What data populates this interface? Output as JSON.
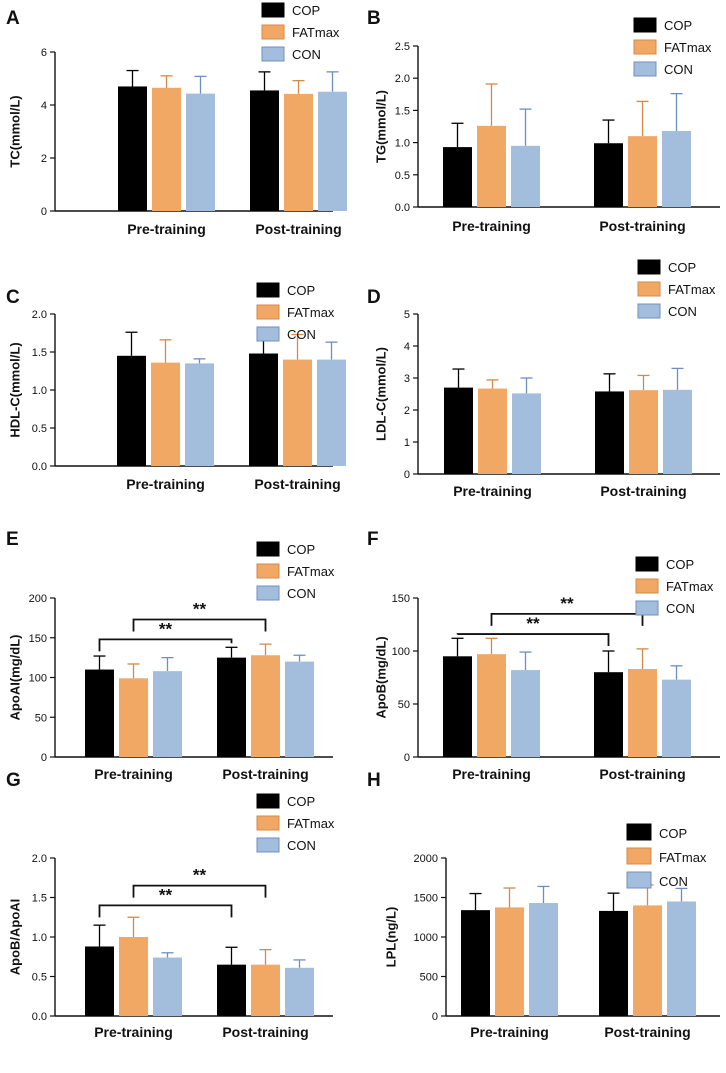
{
  "colors": {
    "COP": "#000000",
    "FATmax": "#F0A864",
    "CON": "#A2BEDC",
    "err_COP": "#000000",
    "err_FATmax": "#D4894A",
    "err_CON": "#6D8FBF",
    "axis": "#111111"
  },
  "chart_data": [
    {
      "type": "bar",
      "panel": "A",
      "ylabel": "TC(mmol/L)",
      "categories": [
        "Pre-training",
        "Post-training"
      ],
      "ylim": [
        0,
        6
      ],
      "yticks": [
        "0",
        "2",
        "4",
        "6"
      ],
      "legend": [
        "COP",
        "FATmax",
        "CON"
      ],
      "series": [
        {
          "name": "COP",
          "values": [
            4.7,
            4.55
          ],
          "errors": [
            0.6,
            0.7
          ]
        },
        {
          "name": "FATmax",
          "values": [
            4.65,
            4.42
          ],
          "errors": [
            0.45,
            0.5
          ]
        },
        {
          "name": "CON",
          "values": [
            4.43,
            4.5
          ],
          "errors": [
            0.65,
            0.75
          ]
        }
      ],
      "significance": []
    },
    {
      "type": "bar",
      "panel": "B",
      "ylabel": "TG(mmol/L)",
      "categories": [
        "Pre-training",
        "Post-training"
      ],
      "ylim": [
        0,
        2.5
      ],
      "yticks": [
        "0.0",
        "0.5",
        "1.0",
        "1.5",
        "2.0",
        "2.5"
      ],
      "legend": [
        "COP",
        "FATmax",
        "CON"
      ],
      "series": [
        {
          "name": "COP",
          "values": [
            0.93,
            0.99
          ],
          "errors": [
            0.37,
            0.36
          ]
        },
        {
          "name": "FATmax",
          "values": [
            1.26,
            1.1
          ],
          "errors": [
            0.65,
            0.54
          ]
        },
        {
          "name": "CON",
          "values": [
            0.95,
            1.18
          ],
          "errors": [
            0.57,
            0.58
          ]
        }
      ],
      "significance": []
    },
    {
      "type": "bar",
      "panel": "C",
      "ylabel": "HDL-C(mmol/L)",
      "categories": [
        "Pre-training",
        "Post-training"
      ],
      "ylim": [
        0,
        2.0
      ],
      "yticks": [
        "0.0",
        "0.5",
        "1.0",
        "1.5",
        "2.0"
      ],
      "legend": [
        "COP",
        "FATmax",
        "CON"
      ],
      "series": [
        {
          "name": "COP",
          "values": [
            1.45,
            1.48
          ],
          "errors": [
            0.31,
            0.26
          ]
        },
        {
          "name": "FATmax",
          "values": [
            1.36,
            1.4
          ],
          "errors": [
            0.3,
            0.33
          ]
        },
        {
          "name": "CON",
          "values": [
            1.35,
            1.4
          ],
          "errors": [
            0.06,
            0.23
          ]
        }
      ],
      "significance": []
    },
    {
      "type": "bar",
      "panel": "D",
      "ylabel": "LDL-C(mmol/L)",
      "categories": [
        "Pre-training",
        "Post-training"
      ],
      "ylim": [
        0,
        5
      ],
      "yticks": [
        "0",
        "1",
        "2",
        "3",
        "4",
        "5"
      ],
      "legend": [
        "COP",
        "FATmax",
        "CON"
      ],
      "series": [
        {
          "name": "COP",
          "values": [
            2.7,
            2.58
          ],
          "errors": [
            0.58,
            0.55
          ]
        },
        {
          "name": "FATmax",
          "values": [
            2.67,
            2.62
          ],
          "errors": [
            0.27,
            0.46
          ]
        },
        {
          "name": "CON",
          "values": [
            2.52,
            2.63
          ],
          "errors": [
            0.48,
            0.67
          ]
        }
      ],
      "significance": []
    },
    {
      "type": "bar",
      "panel": "E",
      "ylabel": "ApoAI(mg/dL)",
      "categories": [
        "Pre-training",
        "Post-training"
      ],
      "ylim": [
        0,
        200
      ],
      "yticks": [
        "0",
        "50",
        "100",
        "150",
        "200"
      ],
      "legend": [
        "COP",
        "FATmax",
        "CON"
      ],
      "series": [
        {
          "name": "COP",
          "values": [
            110,
            125
          ],
          "errors": [
            17,
            13
          ]
        },
        {
          "name": "FATmax",
          "values": [
            99,
            128
          ],
          "errors": [
            18,
            14
          ]
        },
        {
          "name": "CON",
          "values": [
            108,
            120
          ],
          "errors": [
            17,
            8
          ]
        }
      ],
      "significance": [
        {
          "label": "**",
          "from_category": 0,
          "from_series": 0,
          "to_category": 1,
          "to_series": 0,
          "level": 148
        },
        {
          "label": "**",
          "from_category": 0,
          "from_series": 1,
          "to_category": 1,
          "to_series": 1,
          "level": 173
        }
      ]
    },
    {
      "type": "bar",
      "panel": "F",
      "ylabel": "ApoB(mg/dL)",
      "categories": [
        "Pre-training",
        "Post-training"
      ],
      "ylim": [
        0,
        150
      ],
      "yticks": [
        "0",
        "50",
        "100",
        "150"
      ],
      "legend": [
        "COP",
        "FATmax",
        "CON"
      ],
      "series": [
        {
          "name": "COP",
          "values": [
            95,
            80
          ],
          "errors": [
            17,
            20
          ]
        },
        {
          "name": "FATmax",
          "values": [
            97,
            83
          ],
          "errors": [
            15,
            19
          ]
        },
        {
          "name": "CON",
          "values": [
            82,
            73
          ],
          "errors": [
            17,
            13
          ]
        }
      ],
      "significance": [
        {
          "label": "**",
          "from_category": 0,
          "from_series": 0,
          "to_category": 1,
          "to_series": 0,
          "level": 116
        },
        {
          "label": "**",
          "from_category": 0,
          "from_series": 1,
          "to_category": 1,
          "to_series": 1,
          "level": 135
        }
      ]
    },
    {
      "type": "bar",
      "panel": "G",
      "ylabel": "ApoB/ApoAI",
      "categories": [
        "Pre-training",
        "Post-training"
      ],
      "ylim": [
        0,
        2.0
      ],
      "yticks": [
        "0.0",
        "0.5",
        "1.0",
        "1.5",
        "2.0"
      ],
      "legend": [
        "COP",
        "FATmax",
        "CON"
      ],
      "series": [
        {
          "name": "COP",
          "values": [
            0.88,
            0.65
          ],
          "errors": [
            0.27,
            0.22
          ]
        },
        {
          "name": "FATmax",
          "values": [
            1.0,
            0.65
          ],
          "errors": [
            0.25,
            0.19
          ]
        },
        {
          "name": "CON",
          "values": [
            0.74,
            0.61
          ],
          "errors": [
            0.06,
            0.1
          ]
        }
      ],
      "significance": [
        {
          "label": "**",
          "from_category": 0,
          "from_series": 0,
          "to_category": 1,
          "to_series": 0,
          "level": 1.4
        },
        {
          "label": "**",
          "from_category": 0,
          "from_series": 1,
          "to_category": 1,
          "to_series": 1,
          "level": 1.65
        }
      ]
    },
    {
      "type": "bar",
      "panel": "H",
      "ylabel": "LPL(ng/L)",
      "categories": [
        "Pre-training",
        "Post-training"
      ],
      "ylim": [
        0,
        2000
      ],
      "yticks": [
        "0",
        "500",
        "1000",
        "1500",
        "2000"
      ],
      "legend": [
        "COP",
        "FATmax",
        "CON"
      ],
      "series": [
        {
          "name": "COP",
          "values": [
            1340,
            1330
          ],
          "errors": [
            210,
            225
          ]
        },
        {
          "name": "FATmax",
          "values": [
            1375,
            1400
          ],
          "errors": [
            245,
            260
          ]
        },
        {
          "name": "CON",
          "values": [
            1430,
            1450
          ],
          "errors": [
            210,
            165
          ]
        }
      ],
      "significance": []
    }
  ]
}
